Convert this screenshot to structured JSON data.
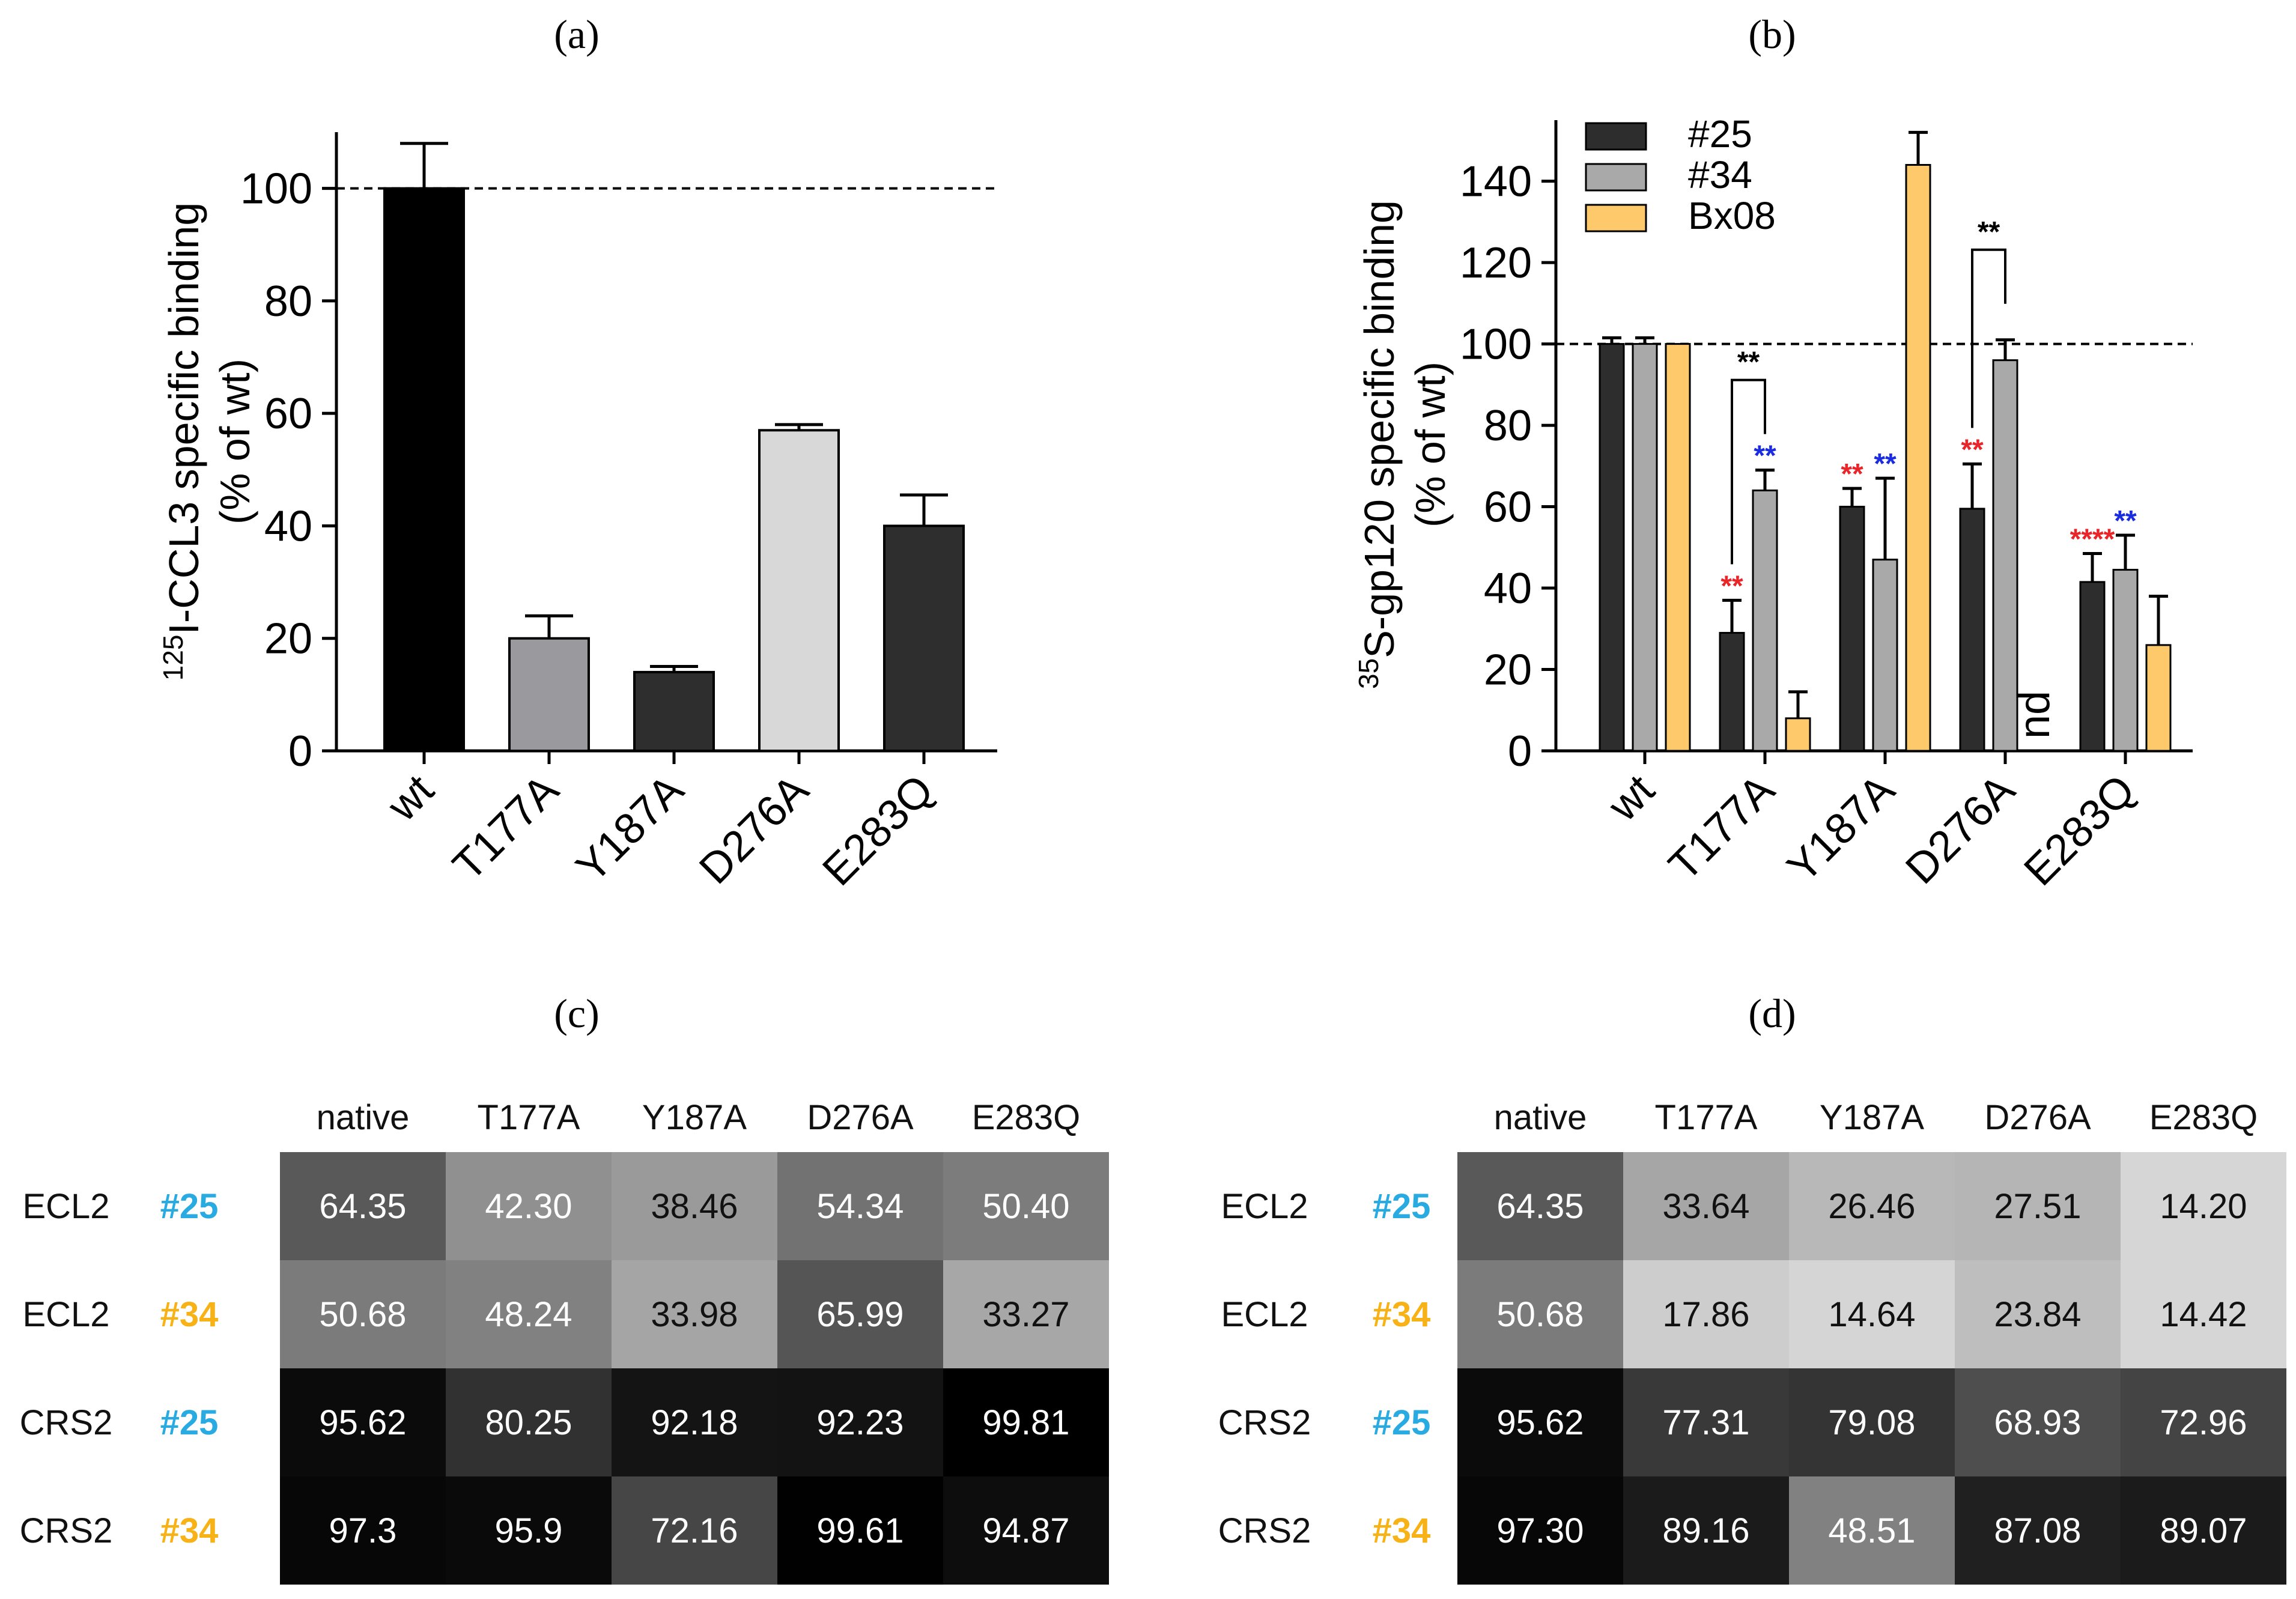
{
  "panels": {
    "a": "(a)",
    "b": "(b)",
    "c": "(c)",
    "d": "(d)"
  },
  "colors": {
    "series25": "#2d2d2d",
    "series34": "#a9a9a9",
    "bx08": "#fdc96b",
    "red": "#e8262a",
    "blue": "#1a2ce0",
    "tag25": "#29abe2",
    "tag34": "#f7b218"
  },
  "chart_data": [
    {
      "type": "bar",
      "panel": "a",
      "ylabel_sup": "125",
      "ylabel_rest": "I-CCL3 specific binding",
      "ylabel_line2": "(% of wt)",
      "categories": [
        "wt",
        "T177A",
        "Y187A",
        "D276A",
        "E283Q"
      ],
      "values": [
        100,
        20,
        14,
        57,
        40
      ],
      "errors": [
        8,
        4,
        1,
        1,
        5.5
      ],
      "bar_colors": [
        "#000000",
        "#9a9a9e",
        "#2e2e2e",
        "#d8d8d8",
        "#2e2e2e"
      ],
      "yticks": [
        0,
        20,
        40,
        60,
        80,
        100
      ],
      "ylim": [
        0,
        110
      ],
      "reference_line": 100
    },
    {
      "type": "bar",
      "panel": "b",
      "ylabel_sup": "35",
      "ylabel_rest": "S-gp120 specific binding",
      "ylabel_line2": "(% of wt)",
      "categories": [
        "wt",
        "T177A",
        "Y187A",
        "D276A",
        "E283Q"
      ],
      "series": [
        {
          "name": "#25",
          "values": [
            100,
            29,
            60,
            59.5,
            41.5
          ],
          "errors": [
            1.5,
            8,
            4.5,
            11,
            7
          ]
        },
        {
          "name": "#34",
          "values": [
            100,
            64,
            47,
            96,
            44.5
          ],
          "errors": [
            1.5,
            5,
            20,
            5,
            8.5
          ]
        },
        {
          "name": "Bx08",
          "values": [
            100,
            8,
            144,
            null,
            26
          ],
          "errors": [
            0,
            6.5,
            8,
            null,
            12
          ]
        }
      ],
      "yticks": [
        0,
        20,
        40,
        60,
        80,
        100,
        120,
        140
      ],
      "ylim": [
        0,
        155
      ],
      "reference_line": 100,
      "annotations": {
        "nd": "nd",
        "bracket_t177a": "**",
        "bracket_d276a": "**",
        "stars": [
          {
            "cat": 1,
            "series": 0,
            "text": "**",
            "color": "red"
          },
          {
            "cat": 1,
            "series": 1,
            "text": "**",
            "color": "blue"
          },
          {
            "cat": 2,
            "series": 0,
            "text": "**",
            "color": "red"
          },
          {
            "cat": 2,
            "series": 1,
            "text": "**",
            "color": "blue"
          },
          {
            "cat": 3,
            "series": 0,
            "text": "**",
            "color": "red"
          },
          {
            "cat": 4,
            "series": 0,
            "text": "****",
            "color": "red"
          },
          {
            "cat": 4,
            "series": 1,
            "text": "**",
            "color": "blue"
          }
        ]
      }
    },
    {
      "type": "heatmap",
      "panel": "c",
      "columns": [
        "native",
        "T177A",
        "Y187A",
        "D276A",
        "E283Q"
      ],
      "rows": [
        {
          "label": "ECL2",
          "tag": "#25",
          "values": [
            "64.35",
            "42.30",
            "38.46",
            "54.34",
            "50.40"
          ]
        },
        {
          "label": "ECL2",
          "tag": "#34",
          "values": [
            "50.68",
            "48.24",
            "33.98",
            "65.99",
            "33.27"
          ]
        },
        {
          "label": "CRS2",
          "tag": "#25",
          "values": [
            "95.62",
            "80.25",
            "92.18",
            "92.23",
            "99.81"
          ]
        },
        {
          "label": "CRS2",
          "tag": "#34",
          "values": [
            "97.3",
            "95.9",
            "72.16",
            "99.61",
            "94.87"
          ]
        }
      ]
    },
    {
      "type": "heatmap",
      "panel": "d",
      "columns": [
        "native",
        "T177A",
        "Y187A",
        "D276A",
        "E283Q"
      ],
      "rows": [
        {
          "label": "ECL2",
          "tag": "#25",
          "values": [
            "64.35",
            "33.64",
            "26.46",
            "27.51",
            "14.20"
          ]
        },
        {
          "label": "ECL2",
          "tag": "#34",
          "values": [
            "50.68",
            "17.86",
            "14.64",
            "23.84",
            "14.42"
          ]
        },
        {
          "label": "CRS2",
          "tag": "#25",
          "values": [
            "95.62",
            "77.31",
            "79.08",
            "68.93",
            "72.96"
          ]
        },
        {
          "label": "CRS2",
          "tag": "#34",
          "values": [
            "97.30",
            "89.16",
            "48.51",
            "87.08",
            "89.07"
          ]
        }
      ]
    }
  ]
}
